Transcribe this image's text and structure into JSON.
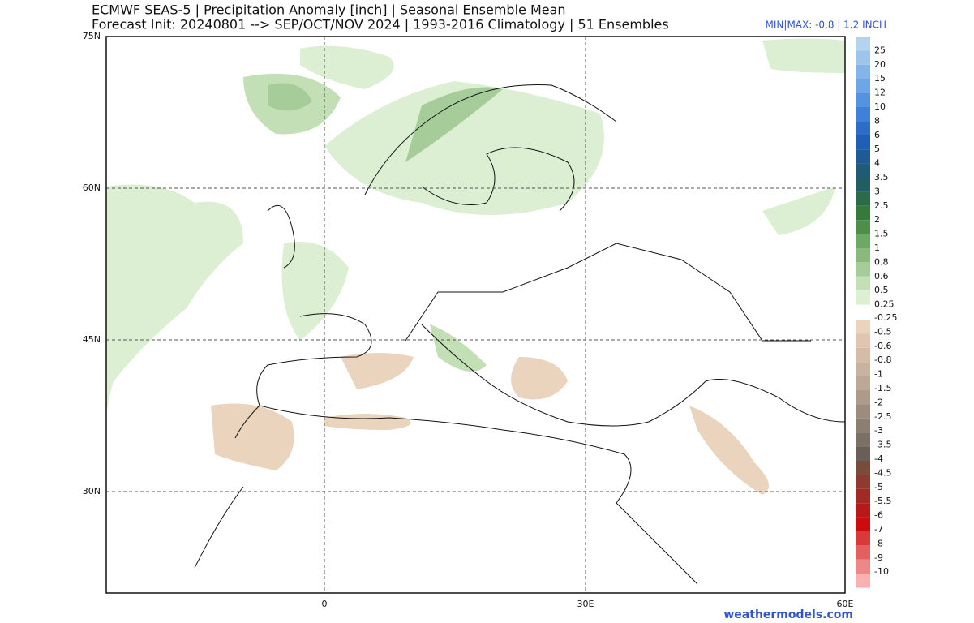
{
  "header": {
    "title": "ECMWF SEAS-5 | Precipitation Anomaly [inch] | Seasonal Ensemble Mean",
    "subtitle": "Forecast Init: 20240801 --> SEP/OCT/NOV 2024  | 1993-2016 Climatology | 51 Ensembles",
    "minmax": "MIN|MAX: -0.8 | 1.2 INCH"
  },
  "map": {
    "lat_labels": [
      "75N",
      "60N",
      "45N",
      "30N"
    ],
    "lon_labels": [
      "0",
      "30E",
      "60E"
    ]
  },
  "colorbar": {
    "positive": {
      "labels": [
        "25",
        "20",
        "15",
        "12",
        "10",
        "8",
        "6",
        "5",
        "4",
        "3.5",
        "3",
        "2.5",
        "2",
        "1.5",
        "1",
        "0.8",
        "0.6",
        "0.5",
        "0.25"
      ],
      "colors": [
        "#b3d3ee",
        "#9dc5ec",
        "#84b5ea",
        "#6ea5e6",
        "#5592e0",
        "#3f80d8",
        "#2b6dc8",
        "#1f5fb5",
        "#1d5a96",
        "#1f5a78",
        "#215e63",
        "#2a6b4a",
        "#357a3a",
        "#4e8e48",
        "#6ea865",
        "#8ab97e",
        "#a6cd99",
        "#c2dfb5",
        "#dcefd3"
      ]
    },
    "negative": {
      "labels": [
        "-0.25",
        "-0.5",
        "-0.6",
        "-0.8",
        "-1",
        "-1.5",
        "-2",
        "-2.5",
        "-3",
        "-3.5",
        "-4",
        "-4.5",
        "-5",
        "-5.5",
        "-6",
        "-7",
        "-8",
        "-9",
        "-10"
      ],
      "colors": [
        "#ead4bd",
        "#e0c6b0",
        "#d4bca8",
        "#c8b2a0",
        "#bca896",
        "#ad9a88",
        "#9c8c7c",
        "#8c7e70",
        "#7a7064",
        "#686058",
        "#7a4a3a",
        "#8e3a30",
        "#a22a24",
        "#b81818",
        "#cc0c0c",
        "#d83a3a",
        "#e46060",
        "#ee8888",
        "#f8b0b0"
      ]
    }
  },
  "footer": "weathermodels.com"
}
